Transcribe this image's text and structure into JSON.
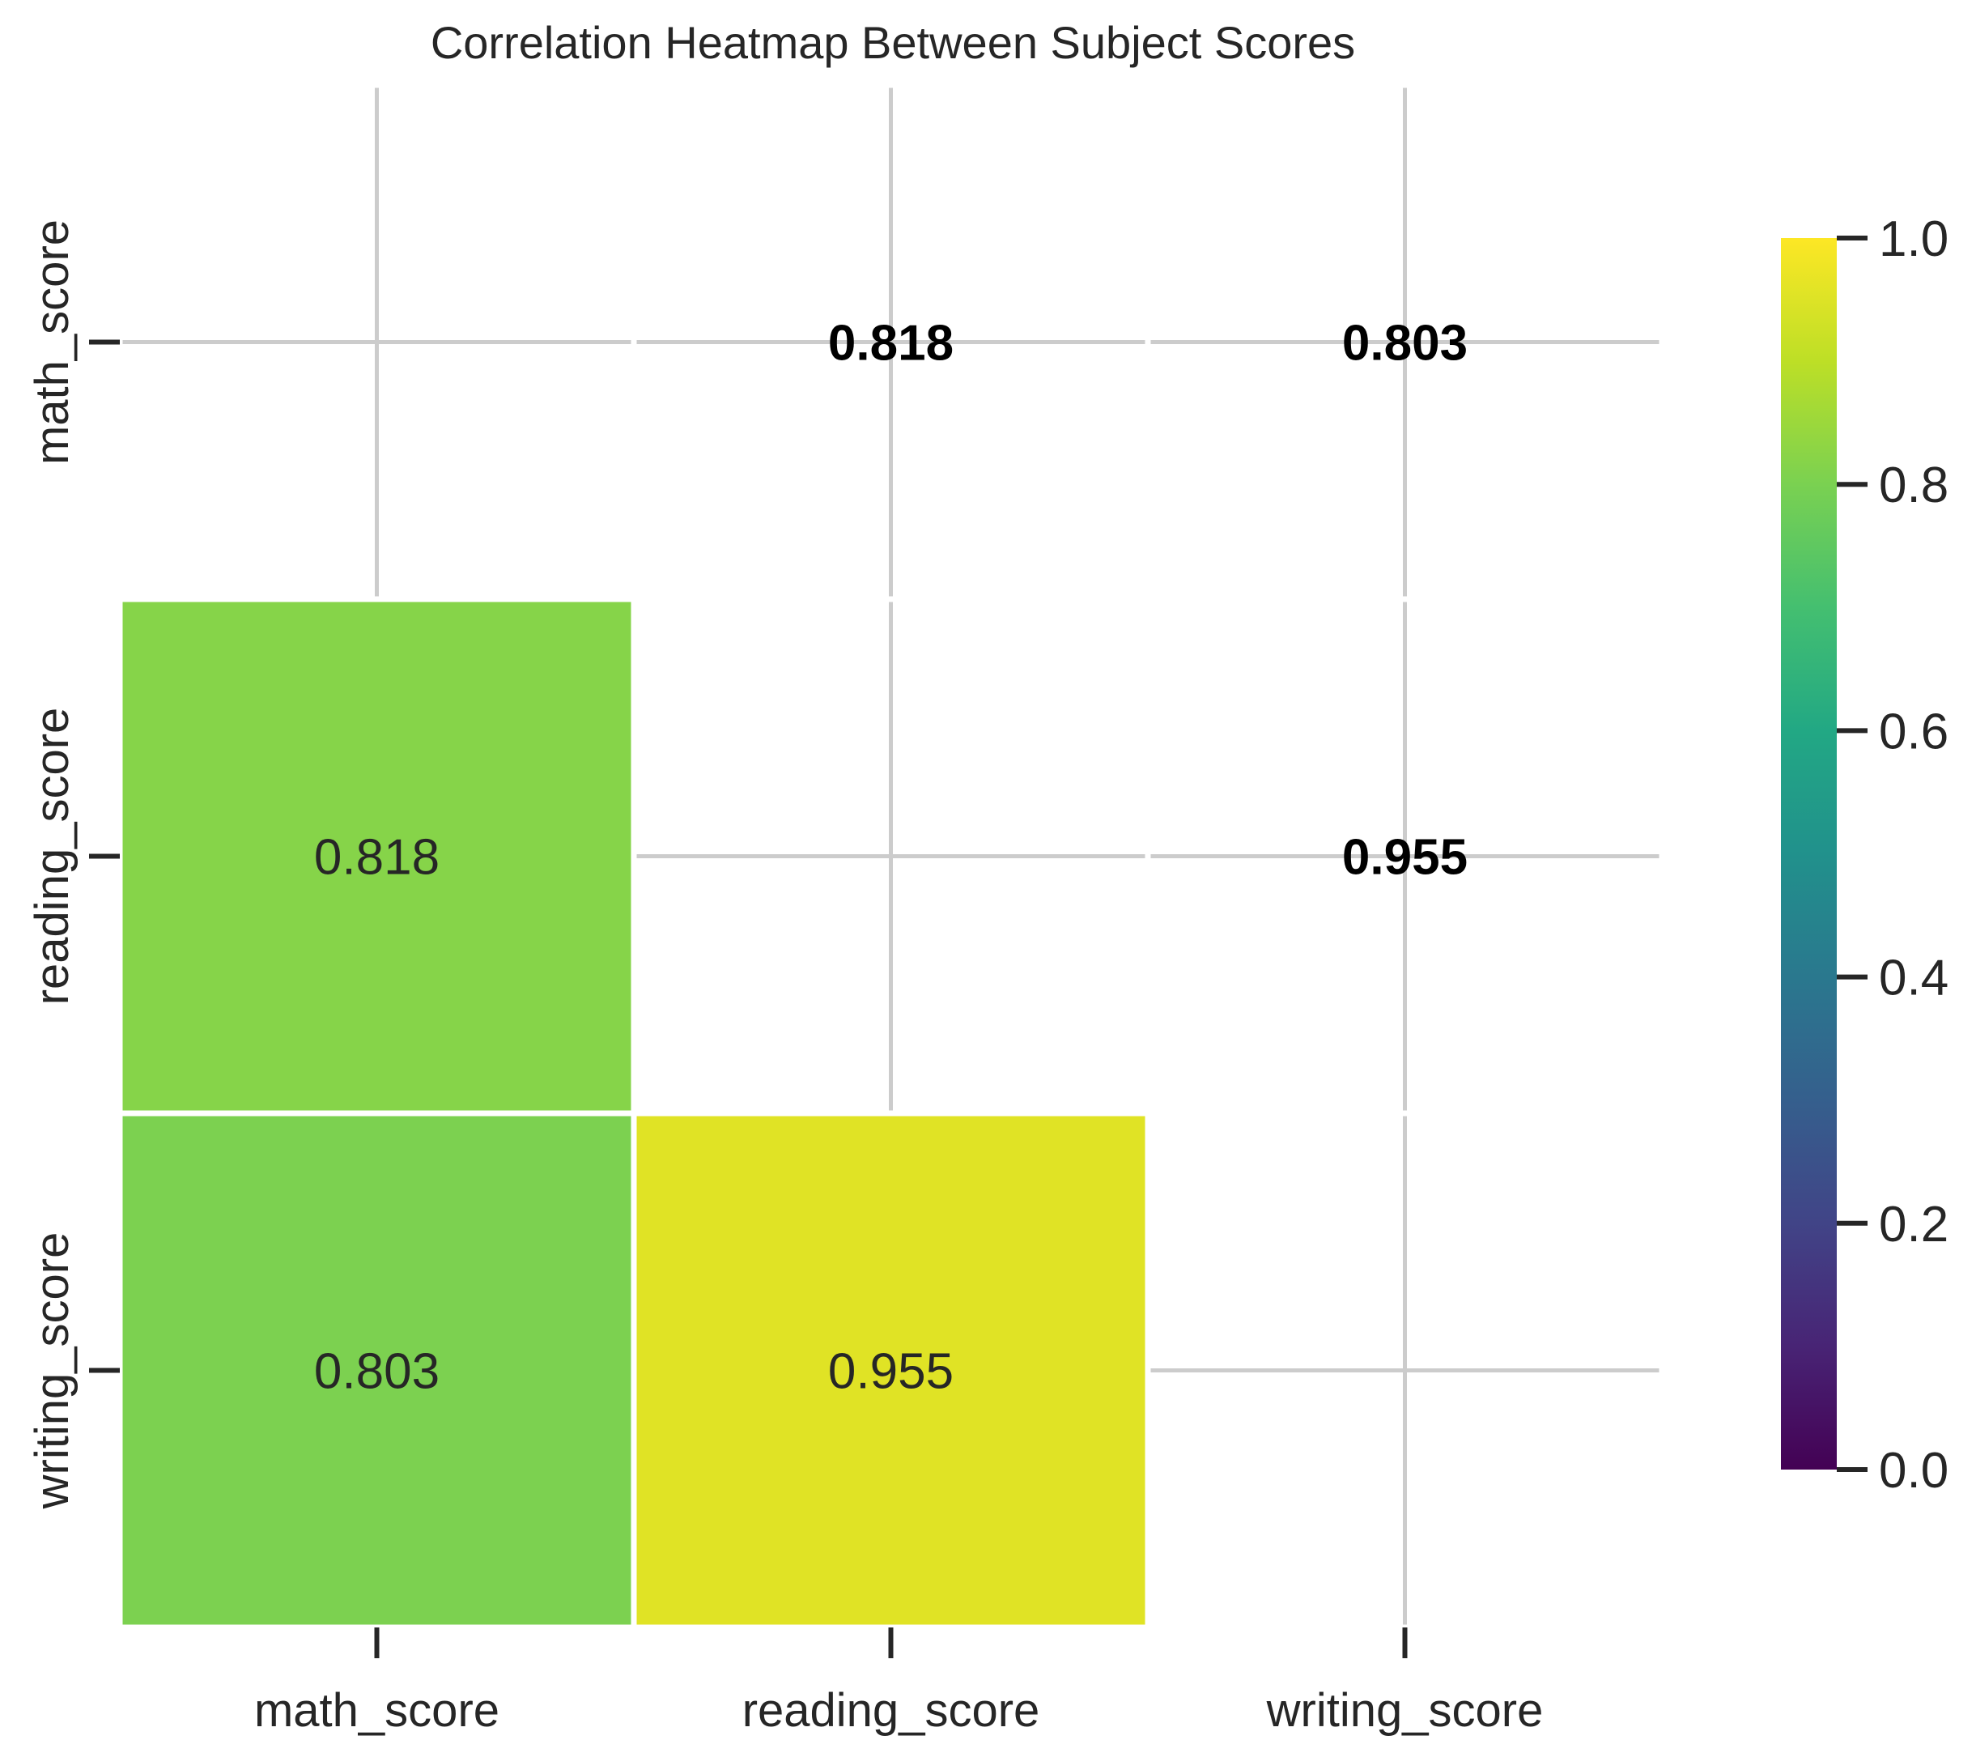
{
  "chart_data": {
    "type": "heatmap",
    "title": "Correlation Heatmap Between Subject Scores",
    "xlabel": "",
    "ylabel": "",
    "x_categories": [
      "math_score",
      "reading_score",
      "writing_score"
    ],
    "y_categories": [
      "math_score",
      "reading_score",
      "writing_score"
    ],
    "masked": "upper-triangle-including-diagonal",
    "cells": [
      {
        "row": 1,
        "col": 0,
        "value": 0.818,
        "label": "0.818"
      },
      {
        "row": 2,
        "col": 0,
        "value": 0.803,
        "label": "0.803"
      },
      {
        "row": 2,
        "col": 1,
        "value": 0.955,
        "label": "0.955"
      }
    ],
    "annotations": [
      {
        "row": 0,
        "col": 1,
        "label": "0.818"
      },
      {
        "row": 0,
        "col": 2,
        "label": "0.803"
      },
      {
        "row": 1,
        "col": 2,
        "label": "0.955"
      }
    ],
    "colormap": "viridis",
    "colorbar": {
      "range": [
        0.0,
        1.0
      ],
      "ticks": [
        0.0,
        0.2,
        0.4,
        0.6,
        0.8,
        1.0
      ],
      "tick_labels": [
        "0.0",
        "0.2",
        "0.4",
        "0.6",
        "0.8",
        "1.0"
      ]
    },
    "grid": true
  },
  "colors": {
    "grid": "#cccccc",
    "cell_border": "#ffffff",
    "text": "#262626",
    "bold_annotation": "#000000"
  }
}
